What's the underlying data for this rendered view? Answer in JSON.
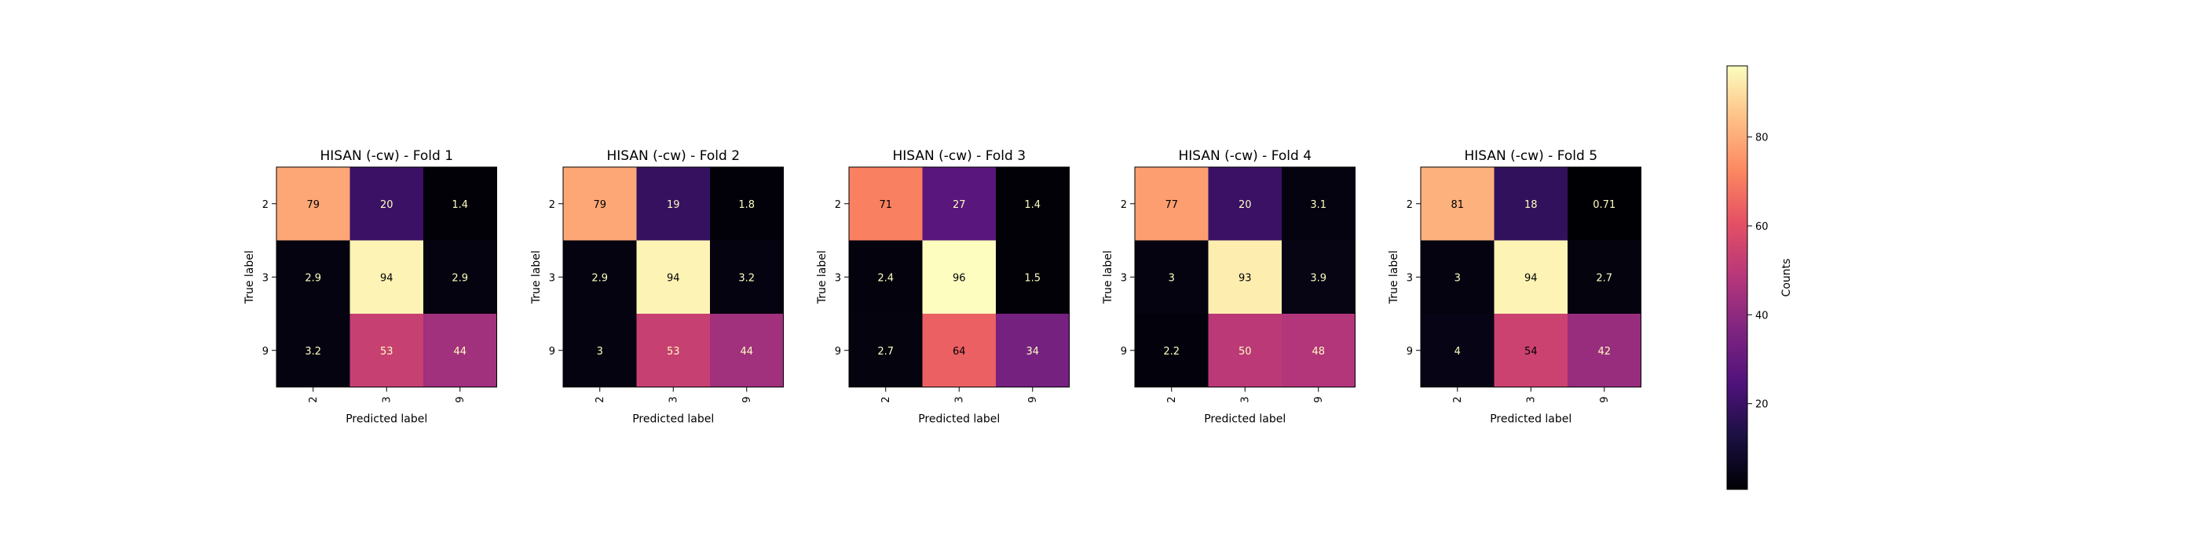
{
  "chart_data": [
    {
      "type": "heatmap",
      "title": "HISAN (-cw) - Fold 1",
      "xlabel": "Predicted label",
      "ylabel": "True label",
      "x_categories": [
        "2",
        "3",
        "9"
      ],
      "y_categories": [
        "2",
        "3",
        "9"
      ],
      "values": [
        [
          79,
          20,
          1.4
        ],
        [
          2.9,
          94,
          2.9
        ],
        [
          3.2,
          53,
          44
        ]
      ]
    },
    {
      "type": "heatmap",
      "title": "HISAN (-cw) - Fold 2",
      "xlabel": "Predicted label",
      "ylabel": "True label",
      "x_categories": [
        "2",
        "3",
        "9"
      ],
      "y_categories": [
        "2",
        "3",
        "9"
      ],
      "values": [
        [
          79,
          19,
          1.8
        ],
        [
          2.9,
          94,
          3.2
        ],
        [
          3,
          53,
          44
        ]
      ]
    },
    {
      "type": "heatmap",
      "title": "HISAN (-cw) - Fold 3",
      "xlabel": "Predicted label",
      "ylabel": "True label",
      "x_categories": [
        "2",
        "3",
        "9"
      ],
      "y_categories": [
        "2",
        "3",
        "9"
      ],
      "values": [
        [
          71,
          27,
          1.4
        ],
        [
          2.4,
          96,
          1.5
        ],
        [
          2.7,
          64,
          34
        ]
      ]
    },
    {
      "type": "heatmap",
      "title": "HISAN (-cw) - Fold 4",
      "xlabel": "Predicted label",
      "ylabel": "True label",
      "x_categories": [
        "2",
        "3",
        "9"
      ],
      "y_categories": [
        "2",
        "3",
        "9"
      ],
      "values": [
        [
          77,
          20,
          3.1
        ],
        [
          3,
          93,
          3.9
        ],
        [
          2.2,
          50,
          48
        ]
      ]
    },
    {
      "type": "heatmap",
      "title": "HISAN (-cw) - Fold 5",
      "xlabel": "Predicted label",
      "ylabel": "True label",
      "x_categories": [
        "2",
        "3",
        "9"
      ],
      "y_categories": [
        "2",
        "3",
        "9"
      ],
      "values": [
        [
          81,
          18,
          0.71
        ],
        [
          3,
          94,
          2.7
        ],
        [
          4,
          54,
          42
        ]
      ]
    }
  ],
  "colorbar": {
    "label": "Counts",
    "colormap": "magma",
    "range": [
      0.71,
      96
    ],
    "ticks": [
      20,
      40,
      60,
      80
    ]
  }
}
